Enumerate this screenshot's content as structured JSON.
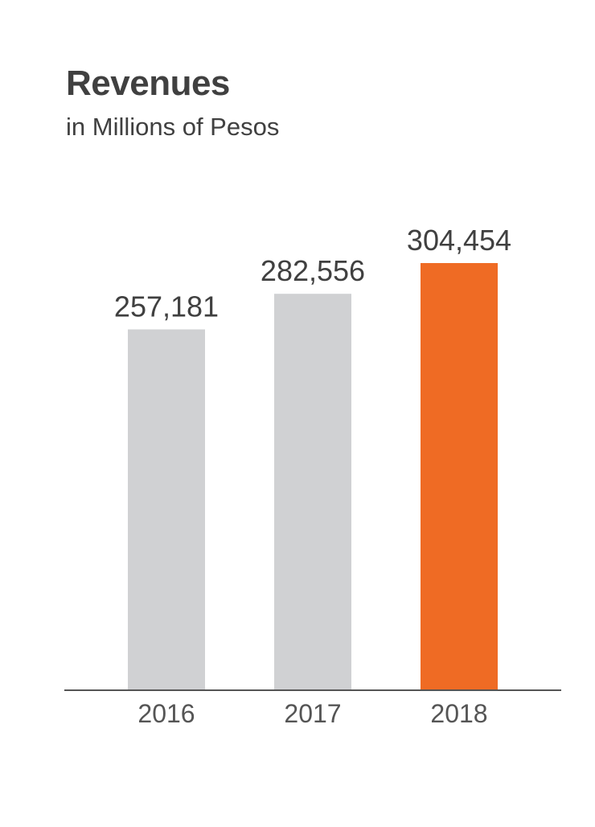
{
  "chart_data": {
    "type": "bar",
    "title": "Revenues",
    "subtitle": "in Millions of Pesos",
    "categories": [
      "2016",
      "2017",
      "2018"
    ],
    "values": [
      257181,
      282556,
      304454
    ],
    "value_labels": [
      "257,181",
      "282,556",
      "304,454"
    ],
    "bar_colors": [
      "#d0d1d3",
      "#d0d1d3",
      "#ef6b24"
    ],
    "axis_color": "#555555",
    "ylim": [
      0,
      304454
    ],
    "grid": false,
    "legend": "none",
    "xlabel": "",
    "ylabel": ""
  }
}
